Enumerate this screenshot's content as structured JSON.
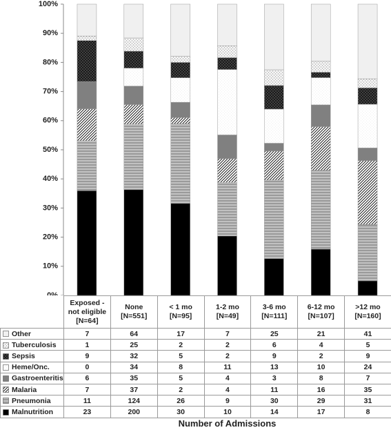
{
  "chart_data": {
    "type": "bar",
    "stacking": "percent",
    "x_title": "Number of Admissions",
    "categories": [
      "Exposed -\nnot eligible\n[N=64]",
      "None\n[N=551]",
      "< 1 mo\n[N=95]",
      "1-2 mo\n[N=49]",
      "3-6 mo\n[N=111]",
      "6-12 mo\n[N=107]",
      ">12 mo\n[N=160]"
    ],
    "ylim": [
      0,
      100
    ],
    "yticks": [
      {
        "value": 0,
        "label": "0%"
      },
      {
        "value": 10,
        "label": "10%"
      },
      {
        "value": 20,
        "label": "20%"
      },
      {
        "value": 30,
        "label": "30%"
      },
      {
        "value": 40,
        "label": "40%"
      },
      {
        "value": 50,
        "label": "50%"
      },
      {
        "value": 60,
        "label": "60%"
      },
      {
        "value": 70,
        "label": "70%"
      },
      {
        "value": 80,
        "label": "80%"
      },
      {
        "value": 90,
        "label": "90%"
      },
      {
        "value": 100,
        "label": "100%"
      }
    ],
    "series": [
      {
        "name": "Other",
        "color": "#f0f0f0",
        "pattern": "solid",
        "values": [
          7,
          64,
          17,
          7,
          25,
          21,
          41
        ]
      },
      {
        "name": "Tuberculosis",
        "color": "#f4f4f4",
        "pattern": "dots",
        "values": [
          1,
          25,
          2,
          2,
          6,
          4,
          5
        ]
      },
      {
        "name": "Sepsis",
        "color": "#1a1a1a",
        "pattern": "crosshatch",
        "values": [
          9,
          32,
          5,
          2,
          9,
          2,
          9
        ]
      },
      {
        "name": "Heme/Onc.",
        "color": "#ffffff",
        "pattern": "speckle",
        "values": [
          0,
          34,
          8,
          11,
          13,
          10,
          24
        ]
      },
      {
        "name": "Gastroenteritis",
        "color": "#808080",
        "pattern": "solid",
        "values": [
          6,
          35,
          5,
          4,
          3,
          8,
          7
        ]
      },
      {
        "name": "Malaria",
        "color": "#ffffff",
        "pattern": "diagonal",
        "values": [
          7,
          37,
          2,
          4,
          11,
          16,
          35
        ]
      },
      {
        "name": "Pneumonia",
        "color": "#9a9a9a",
        "pattern": "lines",
        "values": [
          11,
          124,
          26,
          9,
          30,
          29,
          31
        ]
      },
      {
        "name": "Malnutrition",
        "color": "#000000",
        "pattern": "solid",
        "values": [
          23,
          200,
          30,
          10,
          14,
          17,
          8
        ]
      }
    ]
  }
}
